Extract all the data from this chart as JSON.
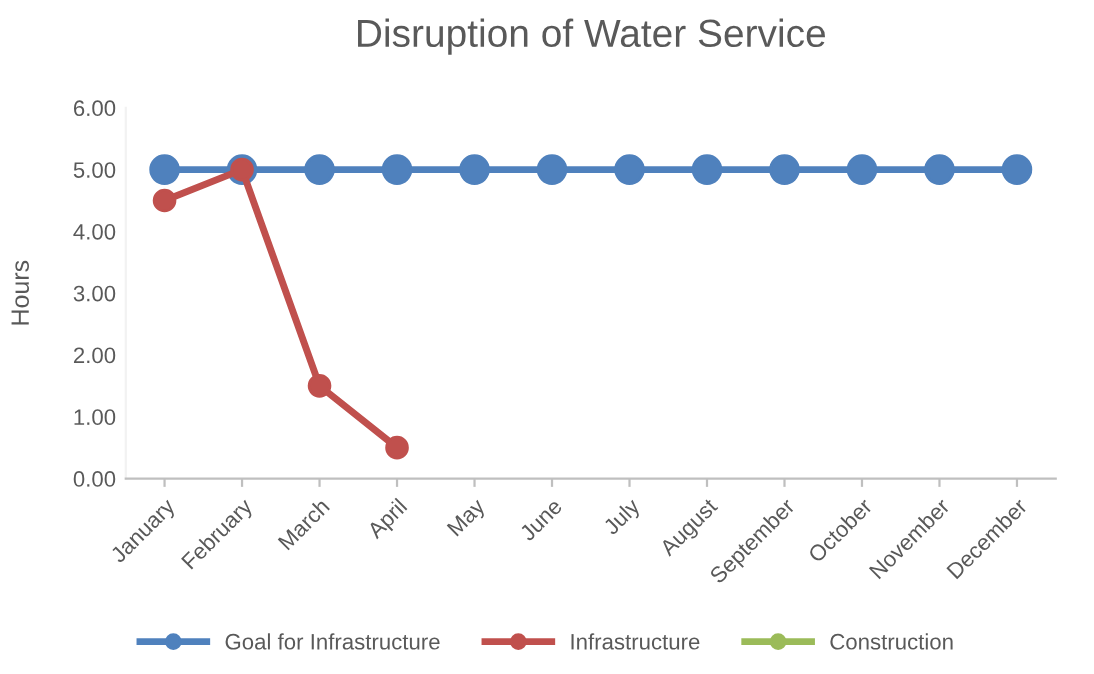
{
  "chart_data": {
    "type": "line",
    "title": "Disruption of Water Service",
    "ylabel": "Hours",
    "categories": [
      "January",
      "February",
      "March",
      "April",
      "May",
      "June",
      "July",
      "August",
      "September",
      "October",
      "November",
      "December"
    ],
    "series": [
      {
        "name": "Goal for Infrastructure",
        "color": "#4f81bd",
        "values": [
          5,
          5,
          5,
          5,
          5,
          5,
          5,
          5,
          5,
          5,
          5,
          5
        ]
      },
      {
        "name": "Infrastructure",
        "color": "#c0504d",
        "values": [
          4.5,
          5,
          1.5,
          0.5,
          null,
          null,
          null,
          null,
          null,
          null,
          null,
          null
        ]
      },
      {
        "name": "Construction",
        "color": "#9bbb59",
        "values": [
          null,
          null,
          null,
          null,
          null,
          null,
          null,
          null,
          null,
          null,
          null,
          null
        ]
      }
    ],
    "ylim": [
      0,
      6
    ],
    "yticks": [
      {
        "value": 0,
        "label": "0.00"
      },
      {
        "value": 1,
        "label": "1.00"
      },
      {
        "value": 2,
        "label": "2.00"
      },
      {
        "value": 3,
        "label": "3.00"
      },
      {
        "value": 4,
        "label": "4.00"
      },
      {
        "value": 5,
        "label": "5.00"
      },
      {
        "value": 6,
        "label": "6.00"
      }
    ],
    "marker": "circle",
    "line_style": "solid",
    "legend": "bottom",
    "grid": false
  }
}
